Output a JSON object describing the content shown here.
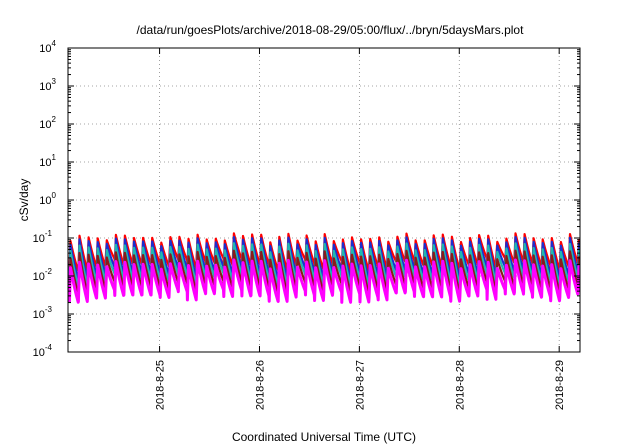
{
  "chart_data": {
    "type": "line",
    "title": "/data/run/goesPlots/archive/2018-08-29/05:00/flux/../bryn/5daysMars.plot",
    "xlabel": "Coordinated Universal Time (UTC)",
    "ylabel": "cSv/day",
    "yscale": "log",
    "ylim": [
      0.0001,
      10000
    ],
    "y_ticks": [
      {
        "base": "10",
        "exp": "-4",
        "value": 0.0001
      },
      {
        "base": "10",
        "exp": "-3",
        "value": 0.001
      },
      {
        "base": "10",
        "exp": "-2",
        "value": 0.01
      },
      {
        "base": "10",
        "exp": "-1",
        "value": 0.1
      },
      {
        "base": "10",
        "exp": "0",
        "value": 1
      },
      {
        "base": "10",
        "exp": "1",
        "value": 10
      },
      {
        "base": "10",
        "exp": "2",
        "value": 100
      },
      {
        "base": "10",
        "exp": "3",
        "value": 1000
      },
      {
        "base": "10",
        "exp": "4",
        "value": 10000
      }
    ],
    "xlim": [
      "2018-08-24T02:00",
      "2018-08-29T05:00"
    ],
    "x_ticks": [
      {
        "label": "2018-8-25",
        "value": "2018-08-25T00:00"
      },
      {
        "label": "2018-8-26",
        "value": "2018-08-26T00:00"
      },
      {
        "label": "2018-8-27",
        "value": "2018-08-27T00:00"
      },
      {
        "label": "2018-8-28",
        "value": "2018-08-28T00:00"
      },
      {
        "label": "2018-8-29",
        "value": "2018-08-29T00:00"
      }
    ],
    "grid": true,
    "sawtooth_cycles_per_day": 11,
    "series": [
      {
        "color": "#ff0000",
        "peak_value": 0.1,
        "trough_value": 0.02
      },
      {
        "color": "#1a2fd0",
        "peak_value": 0.08,
        "trough_value": 0.012
      },
      {
        "color": "#20b8b0",
        "peak_value": 0.055,
        "trough_value": 0.008
      },
      {
        "color": "#8b1a1a",
        "peak_value": 0.035,
        "trough_value": 0.005
      },
      {
        "color": "#ff00ff",
        "peak_value": 0.02,
        "trough_value": 0.003
      }
    ]
  }
}
